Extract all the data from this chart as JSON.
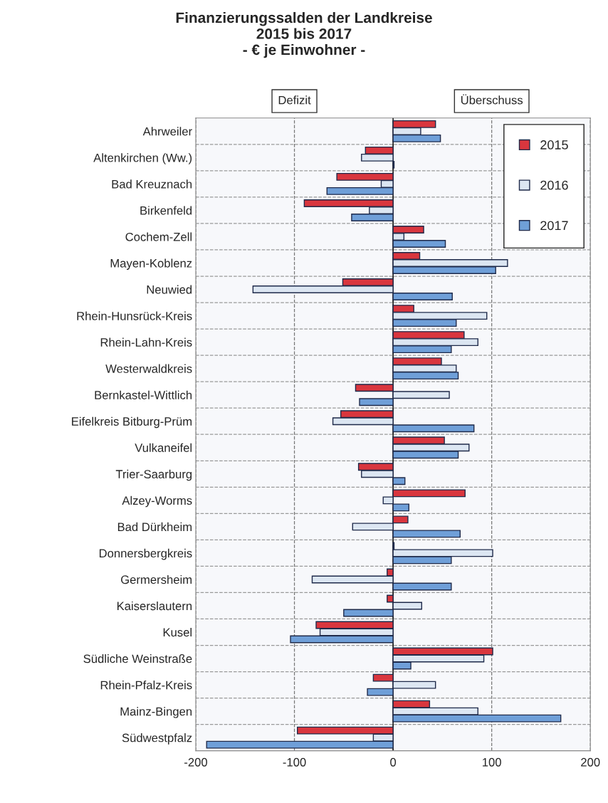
{
  "chart_data": {
    "type": "bar",
    "orientation": "horizontal",
    "title": "Finanzierungssalden der Landkreise\n2015 bis 2017\n- € je Einwohner -",
    "annotations": [
      "Defizit",
      "Überschuss"
    ],
    "categories": [
      "Ahrweiler",
      "Altenkirchen (Ww.)",
      "Bad Kreuznach",
      "Birkenfeld",
      "Cochem-Zell",
      "Mayen-Koblenz",
      "Neuwied",
      "Rhein-Hunsrück-Kreis",
      "Rhein-Lahn-Kreis",
      "Westerwaldkreis",
      "Bernkastel-Wittlich",
      "Eifelkreis Bitburg-Prüm",
      "Vulkaneifel",
      "Trier-Saarburg",
      "Alzey-Worms",
      "Bad Dürkheim",
      "Donnersbergkreis",
      "Germersheim",
      "Kaiserslautern",
      "Kusel",
      "Südliche Weinstraße",
      "Rhein-Pfalz-Kreis",
      "Mainz-Bingen",
      "Südwestpfalz"
    ],
    "series": [
      {
        "name": "2015",
        "color": "#d9363e",
        "values": [
          43,
          -28,
          -57,
          -90,
          31,
          27,
          -51,
          21,
          72,
          49,
          -38,
          -53,
          52,
          -35,
          73,
          15,
          1,
          -6,
          -6,
          -78,
          101,
          -20,
          37,
          -97
        ]
      },
      {
        "name": "2016",
        "color": "#dce6f2",
        "values": [
          28,
          -32,
          -12,
          -24,
          11,
          116,
          -142,
          95,
          86,
          64,
          57,
          -61,
          77,
          -32,
          -10,
          -41,
          101,
          -82,
          29,
          -74,
          92,
          43,
          86,
          -20
        ]
      },
      {
        "name": "2017",
        "color": "#6f9fd8",
        "values": [
          48,
          1,
          -67,
          -42,
          53,
          104,
          60,
          64,
          59,
          66,
          -34,
          82,
          66,
          12,
          16,
          68,
          59,
          59,
          -50,
          -104,
          18,
          -26,
          170,
          -189
        ]
      }
    ],
    "xlim": [
      -200,
      200
    ],
    "xticks": [
      -200,
      -100,
      0,
      100,
      200
    ],
    "grid": true,
    "legend": "top right"
  }
}
